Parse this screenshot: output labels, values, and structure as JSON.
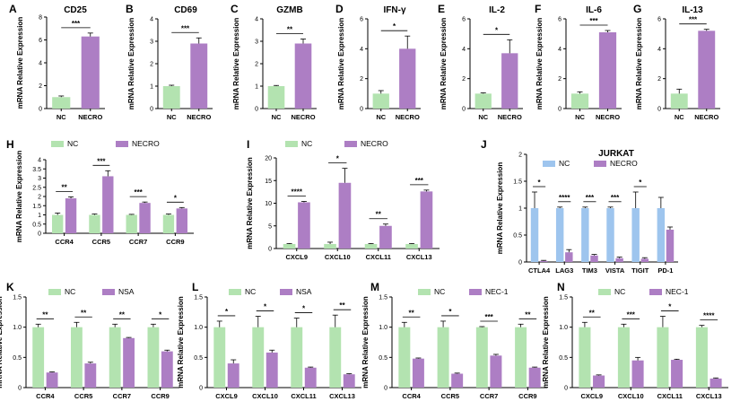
{
  "colors": {
    "nc": "#b3e3b0",
    "treat": "#ad7ec4",
    "jurkat_nc": "#9ec5ee",
    "axis": "#000000"
  },
  "chart_data": [
    {
      "id": "A",
      "type": "bar",
      "title": "CD25",
      "ylabel": "mRNA Relative Expression",
      "ylim": [
        0,
        8
      ],
      "yticks": [
        0,
        2,
        4,
        6,
        8
      ],
      "categories": [
        "NC",
        "NECRO"
      ],
      "values": [
        1.0,
        6.3
      ],
      "errors": [
        0.1,
        0.3
      ],
      "sig": [
        "***"
      ]
    },
    {
      "id": "B",
      "type": "bar",
      "title": "CD69",
      "ylabel": "mRNA Relative Expression",
      "ylim": [
        0,
        4
      ],
      "yticks": [
        0,
        1,
        2,
        3,
        4
      ],
      "categories": [
        "NC",
        "NECRO"
      ],
      "values": [
        1.0,
        2.9
      ],
      "errors": [
        0.04,
        0.25
      ],
      "sig": [
        "***"
      ]
    },
    {
      "id": "C",
      "type": "bar",
      "title": "GZMB",
      "ylabel": "mRNA Relative Expression",
      "ylim": [
        0,
        4
      ],
      "yticks": [
        0,
        1,
        2,
        3,
        4
      ],
      "categories": [
        "NC",
        "NECRO"
      ],
      "values": [
        1.0,
        2.9
      ],
      "errors": [
        0.03,
        0.2
      ],
      "sig": [
        "**"
      ]
    },
    {
      "id": "D",
      "type": "bar",
      "title": "IFN-γ",
      "ylabel": "mRNA Relative Expression",
      "ylim": [
        0,
        6
      ],
      "yticks": [
        0,
        2,
        4,
        6
      ],
      "categories": [
        "NC",
        "NECRO"
      ],
      "values": [
        1.0,
        4.0
      ],
      "errors": [
        0.2,
        0.85
      ],
      "sig": [
        "*"
      ]
    },
    {
      "id": "E",
      "type": "bar",
      "title": "IL-2",
      "ylabel": "mRNA Relative Expression",
      "ylim": [
        0,
        6
      ],
      "yticks": [
        0,
        2,
        4,
        6
      ],
      "categories": [
        "NC",
        "NECRO"
      ],
      "values": [
        1.0,
        3.7
      ],
      "errors": [
        0.05,
        0.9
      ],
      "sig": [
        "*"
      ]
    },
    {
      "id": "F",
      "type": "bar",
      "title": "IL-6",
      "ylabel": "mRNA Relative Expression",
      "ylim": [
        0,
        6
      ],
      "yticks": [
        0,
        2,
        4,
        6
      ],
      "categories": [
        "NC",
        "NECRO"
      ],
      "values": [
        1.0,
        5.1
      ],
      "errors": [
        0.12,
        0.12
      ],
      "sig": [
        "***"
      ]
    },
    {
      "id": "G",
      "type": "bar",
      "title": "IL-13",
      "ylabel": "mRNA Relative Expression",
      "ylim": [
        0,
        6
      ],
      "yticks": [
        0,
        2,
        4,
        6
      ],
      "categories": [
        "NC",
        "NECRO"
      ],
      "values": [
        1.0,
        5.2
      ],
      "errors": [
        0.3,
        0.1
      ],
      "sig": [
        "***"
      ]
    },
    {
      "id": "H",
      "type": "bar",
      "title": "",
      "ylabel": "mRNA Relative Expression",
      "ylim": [
        0,
        4
      ],
      "yticks": [
        0,
        0.5,
        1,
        1.5,
        2,
        2.5,
        3,
        3.5,
        4
      ],
      "categories": [
        "CCR4",
        "CCR5",
        "CCR7",
        "CCR9"
      ],
      "series": [
        {
          "name": "NC",
          "values": [
            1.0,
            1.0,
            1.0,
            1.0
          ],
          "errors": [
            0.1,
            0.05,
            0.03,
            0.05
          ]
        },
        {
          "name": "NECRO",
          "values": [
            1.9,
            3.1,
            1.65,
            1.35
          ],
          "errors": [
            0.08,
            0.3,
            0.05,
            0.05
          ]
        }
      ],
      "sig": [
        "**",
        "***",
        "***",
        "*"
      ]
    },
    {
      "id": "I",
      "type": "bar",
      "title": "",
      "ylabel": "mRNA Relative Expression",
      "ylim": [
        0,
        20
      ],
      "yticks": [
        0,
        5,
        10,
        15,
        20
      ],
      "categories": [
        "CXCL9",
        "CXCL10",
        "CXCL11",
        "CXCL13"
      ],
      "series": [
        {
          "name": "NC",
          "values": [
            1.0,
            1.0,
            1.0,
            1.0
          ],
          "errors": [
            0.1,
            0.4,
            0.1,
            0.1
          ]
        },
        {
          "name": "NECRO",
          "values": [
            10.2,
            14.5,
            5.0,
            12.6
          ],
          "errors": [
            0.2,
            3.2,
            0.4,
            0.3
          ]
        }
      ],
      "sig": [
        "****",
        "*",
        "**",
        "***"
      ]
    },
    {
      "id": "J",
      "type": "bar",
      "title": "JURKAT",
      "ylabel": "mRNA Relative Expression",
      "ylim": [
        0,
        2
      ],
      "yticks": [
        0,
        0.5,
        1,
        1.5,
        2
      ],
      "categories": [
        "CTLA4",
        "LAG3",
        "TIM3",
        "VISTA",
        "TIGIT",
        "PD-1"
      ],
      "series": [
        {
          "name": "NC",
          "values": [
            1.0,
            1.0,
            1.0,
            1.0,
            1.0,
            1.0
          ],
          "errors": [
            0.3,
            0.02,
            0.02,
            0.02,
            0.3,
            0.2
          ]
        },
        {
          "name": "NECRO",
          "values": [
            0.02,
            0.18,
            0.12,
            0.07,
            0.06,
            0.6
          ],
          "errors": [
            0.01,
            0.05,
            0.02,
            0.02,
            0.02,
            0.05
          ]
        }
      ],
      "sig": [
        "*",
        "****",
        "***",
        "***",
        "*",
        ""
      ]
    },
    {
      "id": "K",
      "type": "bar",
      "title": "",
      "ylabel": "mRNA Relative Expression",
      "ylim": [
        0,
        1.5
      ],
      "yticks": [
        0,
        0.5,
        1.0,
        1.5
      ],
      "categories": [
        "CCR4",
        "CCR5",
        "CCR7",
        "CCR9"
      ],
      "series": [
        {
          "name": "NC",
          "values": [
            1.0,
            1.0,
            1.0,
            1.0
          ],
          "errors": [
            0.05,
            0.08,
            0.05,
            0.05
          ]
        },
        {
          "name": "NSA",
          "values": [
            0.25,
            0.4,
            0.82,
            0.6
          ],
          "errors": [
            0.01,
            0.02,
            0.01,
            0.02
          ]
        }
      ],
      "sig": [
        "**",
        "**",
        "**",
        "*"
      ]
    },
    {
      "id": "L",
      "type": "bar",
      "title": "",
      "ylabel": "mRNA Relative Expression",
      "ylim": [
        0,
        1.5
      ],
      "yticks": [
        0,
        0.5,
        1.0,
        1.5
      ],
      "categories": [
        "CXCL9",
        "CXCL10",
        "CXCL11",
        "CXCL13"
      ],
      "series": [
        {
          "name": "NC",
          "values": [
            1.0,
            1.0,
            1.0,
            1.0
          ],
          "errors": [
            0.1,
            0.18,
            0.15,
            0.2
          ]
        },
        {
          "name": "NSA",
          "values": [
            0.4,
            0.58,
            0.33,
            0.22
          ],
          "errors": [
            0.06,
            0.04,
            0.01,
            0.01
          ]
        }
      ],
      "sig": [
        "*",
        "*",
        "*",
        "**"
      ]
    },
    {
      "id": "M",
      "type": "bar",
      "title": "",
      "ylabel": "mRNA Relative Expression",
      "ylim": [
        0,
        1.5
      ],
      "yticks": [
        0,
        0.5,
        1.0,
        1.5
      ],
      "categories": [
        "CCR4",
        "CCR5",
        "CCR7",
        "CCR9"
      ],
      "series": [
        {
          "name": "NC",
          "values": [
            1.0,
            1.0,
            1.0,
            1.0
          ],
          "errors": [
            0.08,
            0.1,
            0.01,
            0.05
          ]
        },
        {
          "name": "NEC-1",
          "values": [
            0.48,
            0.23,
            0.53,
            0.33
          ],
          "errors": [
            0.01,
            0.01,
            0.02,
            0.01
          ]
        }
      ],
      "sig": [
        "**",
        "*",
        "***",
        "**"
      ]
    },
    {
      "id": "N",
      "type": "bar",
      "title": "",
      "ylabel": "mRNA Relative Expression",
      "ylim": [
        0,
        1.5
      ],
      "yticks": [
        0,
        0.5,
        1.0,
        1.5
      ],
      "categories": [
        "CXCL9",
        "CXCL10",
        "CXCL11",
        "CXCL13"
      ],
      "series": [
        {
          "name": "NC",
          "values": [
            1.0,
            1.0,
            1.0,
            1.0
          ],
          "errors": [
            0.08,
            0.05,
            0.18,
            0.03
          ]
        },
        {
          "name": "NEC-1",
          "values": [
            0.2,
            0.45,
            0.46,
            0.15
          ],
          "errors": [
            0.01,
            0.05,
            0.01,
            0.01
          ]
        }
      ],
      "sig": [
        "**",
        "***",
        "*",
        "****"
      ]
    }
  ]
}
